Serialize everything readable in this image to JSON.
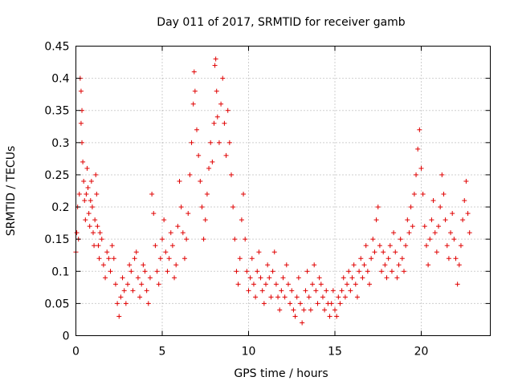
{
  "chart_data": {
    "type": "scatter",
    "title": "Day 011 of 2017, SRMTID for receiver gamb",
    "xlabel": "GPS time / hours",
    "ylabel": "SRMTID / TECUs",
    "xlim": [
      0,
      24
    ],
    "ylim": [
      0,
      0.45
    ],
    "xticks": [
      0,
      5,
      10,
      15,
      20
    ],
    "xtick_labels": [
      "0",
      "5",
      "10",
      "15",
      "20"
    ],
    "yticks": [
      0,
      0.05,
      0.1,
      0.15,
      0.2,
      0.25,
      0.3,
      0.35,
      0.4,
      0.45
    ],
    "ytick_labels": [
      "0",
      "0.05",
      "0.1",
      "0.15",
      "0.2",
      "0.25",
      "0.3",
      "0.35",
      "0.4",
      "0.45"
    ],
    "grid": true,
    "marker": "+",
    "color": "#e00000",
    "series": [
      {
        "name": "SRMTID",
        "points": [
          [
            0.0,
            0.13
          ],
          [
            0.05,
            0.16
          ],
          [
            0.1,
            0.2
          ],
          [
            0.15,
            0.15
          ],
          [
            0.2,
            0.22
          ],
          [
            0.25,
            0.4
          ],
          [
            0.3,
            0.38
          ],
          [
            0.3,
            0.33
          ],
          [
            0.35,
            0.35
          ],
          [
            0.35,
            0.3
          ],
          [
            0.4,
            0.27
          ],
          [
            0.45,
            0.24
          ],
          [
            0.5,
            0.21
          ],
          [
            0.55,
            0.18
          ],
          [
            0.6,
            0.22
          ],
          [
            0.65,
            0.26
          ],
          [
            0.7,
            0.23
          ],
          [
            0.75,
            0.19
          ],
          [
            0.8,
            0.17
          ],
          [
            0.85,
            0.21
          ],
          [
            0.9,
            0.24
          ],
          [
            0.95,
            0.2
          ],
          [
            1.0,
            0.16
          ],
          [
            1.05,
            0.14
          ],
          [
            1.1,
            0.18
          ],
          [
            1.15,
            0.25
          ],
          [
            1.2,
            0.22
          ],
          [
            1.25,
            0.17
          ],
          [
            1.3,
            0.14
          ],
          [
            1.35,
            0.12
          ],
          [
            1.4,
            0.16
          ],
          [
            1.5,
            0.15
          ],
          [
            1.6,
            0.11
          ],
          [
            1.7,
            0.09
          ],
          [
            1.8,
            0.13
          ],
          [
            1.9,
            0.12
          ],
          [
            2.0,
            0.1
          ],
          [
            2.1,
            0.14
          ],
          [
            2.2,
            0.12
          ],
          [
            2.3,
            0.08
          ],
          [
            2.4,
            0.05
          ],
          [
            2.5,
            0.03
          ],
          [
            2.6,
            0.06
          ],
          [
            2.7,
            0.09
          ],
          [
            2.8,
            0.07
          ],
          [
            2.9,
            0.05
          ],
          [
            3.0,
            0.08
          ],
          [
            3.1,
            0.11
          ],
          [
            3.2,
            0.1
          ],
          [
            3.3,
            0.07
          ],
          [
            3.4,
            0.12
          ],
          [
            3.5,
            0.13
          ],
          [
            3.6,
            0.09
          ],
          [
            3.7,
            0.06
          ],
          [
            3.8,
            0.08
          ],
          [
            3.9,
            0.11
          ],
          [
            4.0,
            0.1
          ],
          [
            4.1,
            0.07
          ],
          [
            4.2,
            0.05
          ],
          [
            4.3,
            0.09
          ],
          [
            4.4,
            0.22
          ],
          [
            4.5,
            0.19
          ],
          [
            4.6,
            0.14
          ],
          [
            4.7,
            0.1
          ],
          [
            4.8,
            0.08
          ],
          [
            4.9,
            0.12
          ],
          [
            5.0,
            0.15
          ],
          [
            5.1,
            0.18
          ],
          [
            5.2,
            0.13
          ],
          [
            5.3,
            0.1
          ],
          [
            5.4,
            0.12
          ],
          [
            5.5,
            0.16
          ],
          [
            5.6,
            0.14
          ],
          [
            5.7,
            0.09
          ],
          [
            5.8,
            0.11
          ],
          [
            5.9,
            0.17
          ],
          [
            6.0,
            0.24
          ],
          [
            6.1,
            0.2
          ],
          [
            6.2,
            0.16
          ],
          [
            6.3,
            0.12
          ],
          [
            6.4,
            0.15
          ],
          [
            6.5,
            0.19
          ],
          [
            6.6,
            0.25
          ],
          [
            6.7,
            0.3
          ],
          [
            6.8,
            0.36
          ],
          [
            6.85,
            0.41
          ],
          [
            6.9,
            0.38
          ],
          [
            7.0,
            0.32
          ],
          [
            7.1,
            0.28
          ],
          [
            7.2,
            0.24
          ],
          [
            7.3,
            0.2
          ],
          [
            7.4,
            0.15
          ],
          [
            7.5,
            0.18
          ],
          [
            7.6,
            0.22
          ],
          [
            7.7,
            0.26
          ],
          [
            7.8,
            0.3
          ],
          [
            7.9,
            0.27
          ],
          [
            8.0,
            0.33
          ],
          [
            8.05,
            0.42
          ],
          [
            8.1,
            0.43
          ],
          [
            8.15,
            0.38
          ],
          [
            8.2,
            0.34
          ],
          [
            8.3,
            0.3
          ],
          [
            8.4,
            0.36
          ],
          [
            8.5,
            0.4
          ],
          [
            8.6,
            0.33
          ],
          [
            8.7,
            0.28
          ],
          [
            8.8,
            0.35
          ],
          [
            8.9,
            0.3
          ],
          [
            9.0,
            0.25
          ],
          [
            9.1,
            0.2
          ],
          [
            9.2,
            0.15
          ],
          [
            9.3,
            0.1
          ],
          [
            9.4,
            0.08
          ],
          [
            9.5,
            0.12
          ],
          [
            9.6,
            0.18
          ],
          [
            9.7,
            0.22
          ],
          [
            9.8,
            0.15
          ],
          [
            9.9,
            0.1
          ],
          [
            10.0,
            0.07
          ],
          [
            10.1,
            0.09
          ],
          [
            10.2,
            0.12
          ],
          [
            10.3,
            0.08
          ],
          [
            10.4,
            0.06
          ],
          [
            10.5,
            0.1
          ],
          [
            10.6,
            0.13
          ],
          [
            10.7,
            0.09
          ],
          [
            10.8,
            0.07
          ],
          [
            10.9,
            0.05
          ],
          [
            11.0,
            0.08
          ],
          [
            11.1,
            0.11
          ],
          [
            11.2,
            0.09
          ],
          [
            11.3,
            0.06
          ],
          [
            11.4,
            0.1
          ],
          [
            11.5,
            0.13
          ],
          [
            11.6,
            0.08
          ],
          [
            11.7,
            0.06
          ],
          [
            11.8,
            0.04
          ],
          [
            11.9,
            0.07
          ],
          [
            12.0,
            0.09
          ],
          [
            12.1,
            0.06
          ],
          [
            12.2,
            0.11
          ],
          [
            12.3,
            0.08
          ],
          [
            12.4,
            0.05
          ],
          [
            12.5,
            0.07
          ],
          [
            12.6,
            0.04
          ],
          [
            12.7,
            0.03
          ],
          [
            12.8,
            0.06
          ],
          [
            12.9,
            0.09
          ],
          [
            13.0,
            0.05
          ],
          [
            13.1,
            0.02
          ],
          [
            13.2,
            0.04
          ],
          [
            13.3,
            0.07
          ],
          [
            13.4,
            0.1
          ],
          [
            13.5,
            0.06
          ],
          [
            13.6,
            0.04
          ],
          [
            13.7,
            0.08
          ],
          [
            13.8,
            0.11
          ],
          [
            13.9,
            0.07
          ],
          [
            14.0,
            0.05
          ],
          [
            14.1,
            0.09
          ],
          [
            14.2,
            0.08
          ],
          [
            14.3,
            0.06
          ],
          [
            14.4,
            0.04
          ],
          [
            14.5,
            0.07
          ],
          [
            14.6,
            0.05
          ],
          [
            14.7,
            0.03
          ],
          [
            14.8,
            0.05
          ],
          [
            14.9,
            0.07
          ],
          [
            15.0,
            0.04
          ],
          [
            15.1,
            0.03
          ],
          [
            15.2,
            0.06
          ],
          [
            15.3,
            0.05
          ],
          [
            15.4,
            0.07
          ],
          [
            15.5,
            0.09
          ],
          [
            15.6,
            0.06
          ],
          [
            15.7,
            0.08
          ],
          [
            15.8,
            0.1
          ],
          [
            15.9,
            0.07
          ],
          [
            16.0,
            0.09
          ],
          [
            16.1,
            0.11
          ],
          [
            16.2,
            0.08
          ],
          [
            16.3,
            0.06
          ],
          [
            16.4,
            0.1
          ],
          [
            16.5,
            0.12
          ],
          [
            16.6,
            0.09
          ],
          [
            16.7,
            0.11
          ],
          [
            16.8,
            0.14
          ],
          [
            16.9,
            0.1
          ],
          [
            17.0,
            0.08
          ],
          [
            17.1,
            0.12
          ],
          [
            17.2,
            0.15
          ],
          [
            17.3,
            0.13
          ],
          [
            17.4,
            0.18
          ],
          [
            17.5,
            0.2
          ],
          [
            17.6,
            0.14
          ],
          [
            17.7,
            0.1
          ],
          [
            17.8,
            0.13
          ],
          [
            17.9,
            0.11
          ],
          [
            18.0,
            0.09
          ],
          [
            18.1,
            0.12
          ],
          [
            18.2,
            0.14
          ],
          [
            18.3,
            0.1
          ],
          [
            18.4,
            0.16
          ],
          [
            18.5,
            0.13
          ],
          [
            18.6,
            0.09
          ],
          [
            18.7,
            0.11
          ],
          [
            18.8,
            0.15
          ],
          [
            18.9,
            0.12
          ],
          [
            19.0,
            0.1
          ],
          [
            19.1,
            0.14
          ],
          [
            19.2,
            0.18
          ],
          [
            19.3,
            0.16
          ],
          [
            19.4,
            0.2
          ],
          [
            19.5,
            0.17
          ],
          [
            19.6,
            0.22
          ],
          [
            19.7,
            0.25
          ],
          [
            19.8,
            0.29
          ],
          [
            19.9,
            0.32
          ],
          [
            20.0,
            0.26
          ],
          [
            20.1,
            0.22
          ],
          [
            20.2,
            0.17
          ],
          [
            20.3,
            0.14
          ],
          [
            20.4,
            0.11
          ],
          [
            20.5,
            0.15
          ],
          [
            20.6,
            0.18
          ],
          [
            20.7,
            0.21
          ],
          [
            20.8,
            0.16
          ],
          [
            20.9,
            0.13
          ],
          [
            21.0,
            0.17
          ],
          [
            21.1,
            0.2
          ],
          [
            21.2,
            0.25
          ],
          [
            21.3,
            0.22
          ],
          [
            21.4,
            0.18
          ],
          [
            21.5,
            0.14
          ],
          [
            21.6,
            0.12
          ],
          [
            21.7,
            0.16
          ],
          [
            21.8,
            0.19
          ],
          [
            21.9,
            0.15
          ],
          [
            22.0,
            0.12
          ],
          [
            22.1,
            0.08
          ],
          [
            22.2,
            0.11
          ],
          [
            22.3,
            0.14
          ],
          [
            22.4,
            0.18
          ],
          [
            22.5,
            0.21
          ],
          [
            22.6,
            0.24
          ],
          [
            22.7,
            0.19
          ],
          [
            22.8,
            0.16
          ]
        ]
      }
    ]
  }
}
